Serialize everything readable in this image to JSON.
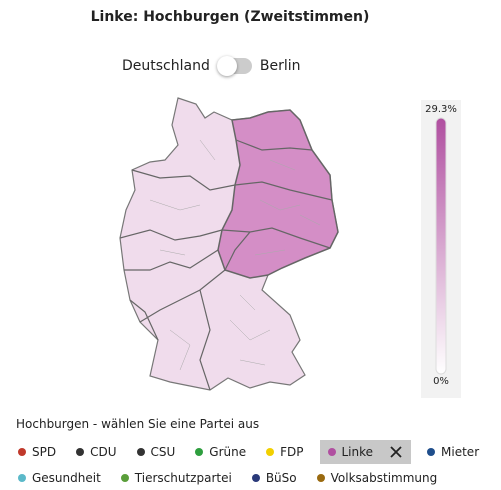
{
  "title": "Linke: Hochburgen (Zweitstimmen)",
  "toggle": {
    "left": "Deutschland",
    "right": "Berlin"
  },
  "scale": {
    "max_label": "29.3%",
    "min_label": "0%",
    "color": "#b04fa0"
  },
  "selector": {
    "label": "Hochburgen  - wählen Sie eine Partei aus",
    "parties": [
      {
        "name": "SPD",
        "color": "#c0392b"
      },
      {
        "name": "CDU",
        "color": "#333333"
      },
      {
        "name": "CSU",
        "color": "#333333"
      },
      {
        "name": "Grüne",
        "color": "#2e9e3e"
      },
      {
        "name": "FDP",
        "color": "#f2d000"
      },
      {
        "name": "Linke",
        "color": "#b04fa0",
        "selected": true
      },
      {
        "name": "Mieter",
        "color": "#1f4e8c"
      },
      {
        "name": "Gesundheit",
        "color": "#5bb9c9"
      },
      {
        "name": "Tierschutzpartei",
        "color": "#5a9e3a"
      },
      {
        "name": "BüSo",
        "color": "#2a3a7a"
      },
      {
        "name": "Volksabstimmung",
        "color": "#9a6a10"
      }
    ]
  }
}
